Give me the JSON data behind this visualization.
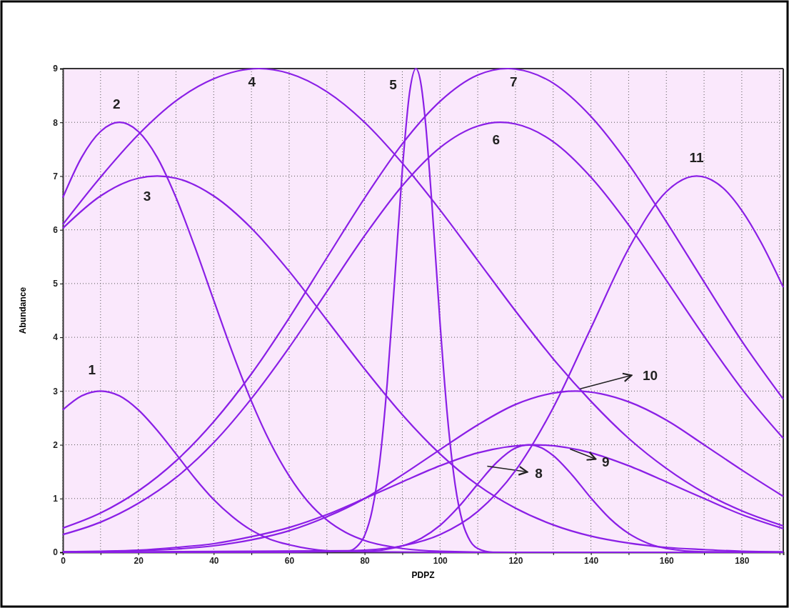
{
  "chart_data": {
    "type": "line",
    "xlabel": "PDPZ",
    "ylabel": "Abundance",
    "xlim": [
      0,
      191
    ],
    "ylim": [
      0,
      9
    ],
    "xticks": [
      0,
      {
        "value": 10,
        "label": null
      },
      20,
      {
        "value": 30,
        "label": null
      },
      40,
      {
        "value": 50,
        "label": null
      },
      60,
      {
        "value": 70,
        "label": null
      },
      80,
      {
        "value": 90,
        "label": null
      },
      100,
      {
        "value": 110,
        "label": null
      },
      120,
      {
        "value": 130,
        "label": null
      },
      140,
      {
        "value": 150,
        "label": null
      },
      160,
      {
        "value": 170,
        "label": null
      },
      180,
      {
        "value": 190,
        "label": null
      }
    ],
    "yticks": [
      0,
      1,
      2,
      3,
      4,
      5,
      6,
      7,
      8,
      9
    ],
    "grid": true,
    "series": [
      {
        "name": "1",
        "color": "#8a1fe6",
        "x": [
          0,
          5,
          10,
          15,
          20,
          25,
          30,
          35,
          40,
          45,
          50,
          55,
          60,
          70,
          80,
          100,
          191
        ],
        "values": [
          2.65,
          2.91,
          3,
          2.91,
          2.65,
          2.27,
          1.83,
          1.38,
          0.98,
          0.66,
          0.41,
          0.24,
          0.14,
          0.03,
          0.01,
          0,
          0
        ]
      },
      {
        "name": "2",
        "color": "#8a1fe6",
        "x": [
          0,
          5,
          10,
          15,
          20,
          25,
          30,
          35,
          40,
          45,
          50,
          55,
          60,
          65,
          70,
          75,
          80,
          90,
          100,
          120,
          191
        ],
        "values": [
          6.6,
          7.35,
          7.83,
          8,
          7.83,
          7.35,
          6.6,
          5.68,
          4.69,
          3.71,
          2.81,
          2.04,
          1.42,
          0.94,
          0.6,
          0.37,
          0.22,
          0.07,
          0.02,
          0,
          0
        ]
      },
      {
        "name": "3",
        "color": "#8a1fe6",
        "x": [
          0,
          10,
          20,
          25,
          30,
          40,
          50,
          60,
          70,
          80,
          90,
          100,
          110,
          120,
          130,
          140,
          150,
          160,
          170,
          180,
          191
        ],
        "values": [
          6.03,
          6.63,
          6.96,
          7,
          6.96,
          6.63,
          6.03,
          5.23,
          4.32,
          3.41,
          2.56,
          1.83,
          1.25,
          0.82,
          0.51,
          0.3,
          0.17,
          0.09,
          0.05,
          0.02,
          0.01
        ]
      },
      {
        "name": "4",
        "color": "#8a1fe6",
        "x": [
          0,
          10,
          20,
          30,
          40,
          52,
          60,
          70,
          80,
          90,
          100,
          110,
          120,
          130,
          140,
          150,
          160,
          170,
          180,
          191
        ],
        "values": [
          6.1,
          6.98,
          7.77,
          8.4,
          8.81,
          9,
          8.91,
          8.57,
          8,
          7.24,
          6.37,
          5.43,
          4.49,
          3.6,
          2.81,
          2.12,
          1.56,
          1.11,
          0.77,
          0.49
        ]
      },
      {
        "name": "5",
        "color": "#8a1fe6",
        "x": [
          0,
          76,
          78,
          80,
          82,
          84,
          86,
          88,
          90,
          92,
          93.6,
          95,
          96,
          98,
          100,
          102,
          104,
          106,
          108,
          110,
          114,
          191
        ],
        "values": [
          0,
          0.03,
          0.11,
          0.31,
          0.78,
          1.68,
          3.15,
          5.09,
          7.11,
          8.59,
          9,
          8.69,
          8.1,
          6.33,
          4.27,
          2.5,
          1.26,
          0.55,
          0.21,
          0.07,
          0,
          0
        ]
      },
      {
        "name": "6",
        "color": "#8a1fe6",
        "x": [
          0,
          10,
          20,
          30,
          40,
          50,
          60,
          70,
          80,
          90,
          100,
          110,
          116,
          120,
          130,
          140,
          150,
          160,
          170,
          180,
          191
        ],
        "values": [
          0.33,
          0.56,
          0.91,
          1.39,
          2.04,
          2.86,
          3.81,
          4.85,
          5.89,
          6.82,
          7.53,
          7.93,
          8,
          7.97,
          7.64,
          6.98,
          6.09,
          5.06,
          4.02,
          3.04,
          2.12
        ]
      },
      {
        "name": "7",
        "color": "#8a1fe6",
        "x": [
          0,
          10,
          20,
          30,
          40,
          50,
          60,
          70,
          80,
          90,
          100,
          110,
          118,
          120,
          130,
          140,
          150,
          160,
          170,
          180,
          191
        ],
        "values": [
          0.45,
          0.73,
          1.14,
          1.7,
          2.43,
          3.32,
          4.36,
          5.48,
          6.59,
          7.6,
          8.39,
          8.88,
          9,
          8.99,
          8.73,
          8.11,
          7.22,
          6.15,
          5.03,
          3.93,
          2.85
        ]
      },
      {
        "name": "8",
        "color": "#8a1fe6",
        "x": [
          0,
          80,
          90,
          95,
          100,
          105,
          110,
          115,
          120,
          123.5,
          127,
          130,
          135,
          140,
          145,
          150,
          155,
          160,
          170,
          191
        ],
        "values": [
          0,
          0.02,
          0.12,
          0.26,
          0.5,
          0.85,
          1.27,
          1.67,
          1.94,
          2,
          1.94,
          1.8,
          1.44,
          1.01,
          0.63,
          0.35,
          0.17,
          0.07,
          0.01,
          0
        ]
      },
      {
        "name": "9",
        "color": "#8a1fe6",
        "x": [
          0,
          10,
          20,
          30,
          40,
          50,
          60,
          70,
          80,
          90,
          100,
          110,
          125,
          140,
          150,
          160,
          170,
          180,
          191
        ],
        "values": [
          0.01,
          0.02,
          0.04,
          0.09,
          0.16,
          0.29,
          0.46,
          0.7,
          1,
          1.31,
          1.61,
          1.85,
          2,
          1.85,
          1.61,
          1.31,
          1,
          0.7,
          0.44
        ]
      },
      {
        "name": "10",
        "color": "#8a1fe6",
        "x": [
          0,
          10,
          20,
          30,
          40,
          50,
          60,
          70,
          80,
          90,
          100,
          110,
          120,
          136,
          150,
          160,
          170,
          180,
          191
        ],
        "values": [
          0.01,
          0.01,
          0.03,
          0.06,
          0.12,
          0.23,
          0.4,
          0.66,
          1,
          1.44,
          1.91,
          2.37,
          2.75,
          3,
          2.8,
          2.46,
          2,
          1.53,
          1.04
        ]
      },
      {
        "name": "11",
        "color": "#8a1fe6",
        "x": [
          0,
          40,
          60,
          80,
          90,
          100,
          110,
          120,
          130,
          140,
          150,
          160,
          168,
          175,
          180,
          185,
          191
        ],
        "values": [
          0,
          0,
          0,
          0.04,
          0.12,
          0.33,
          0.76,
          1.52,
          2.69,
          4.17,
          5.65,
          6.71,
          7,
          6.78,
          6.36,
          5.78,
          4.93
        ]
      }
    ]
  }
}
